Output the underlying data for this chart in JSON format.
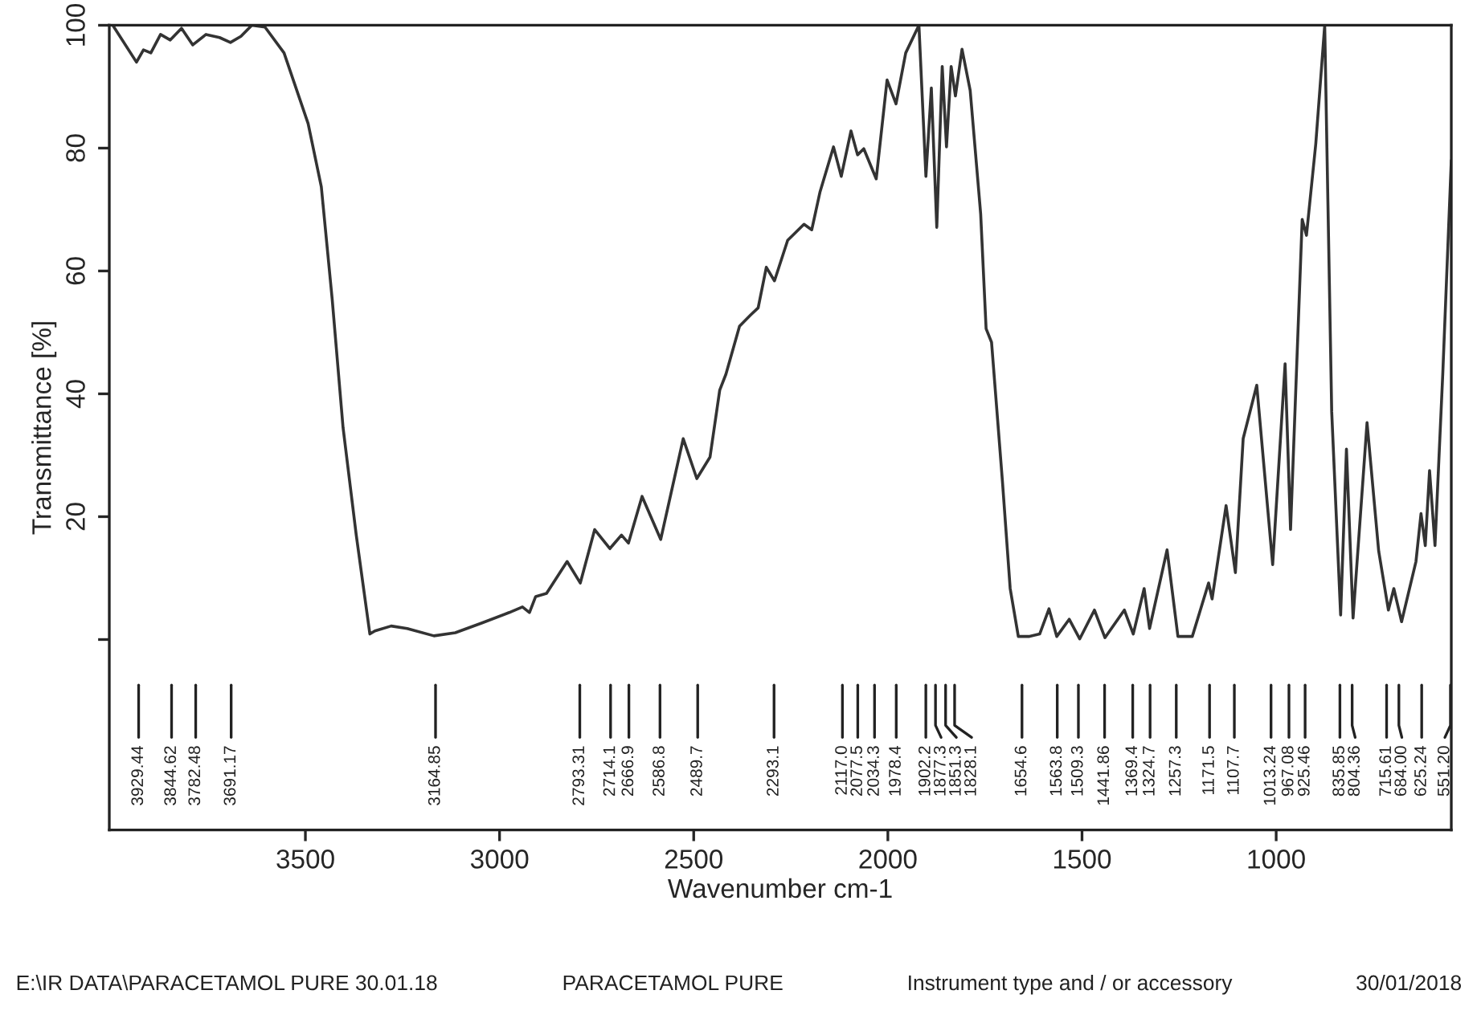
{
  "chart_data": {
    "type": "line",
    "xlabel": "Wavenumber cm-1",
    "ylabel": "Transmittance [%]",
    "xlim": [
      4005,
      549
    ],
    "xticks": [
      3500,
      3000,
      2500,
      2000,
      1500,
      1000
    ],
    "ylim": [
      -31,
      100
    ],
    "yticks": [
      {
        "value": 0,
        "label": null
      },
      20,
      40,
      60,
      80,
      100
    ],
    "grid": false,
    "legend": false,
    "marker": "none",
    "line_style": "solid",
    "series": [
      {
        "color": "#333333",
        "x": [
          3996,
          3935,
          3917,
          3898,
          3873,
          3848,
          3819,
          3790,
          3756,
          3721,
          3693,
          3666,
          3638,
          3604,
          3555,
          3493,
          3459,
          3431,
          3403,
          3369,
          3334,
          3321,
          3279,
          3238,
          3169,
          3114,
          3045,
          2975,
          2941,
          2923,
          2907,
          2879,
          2826,
          2792,
          2755,
          2716,
          2686,
          2668,
          2633,
          2585,
          2527,
          2492,
          2458,
          2433,
          2417,
          2382,
          2354,
          2334,
          2313,
          2292,
          2258,
          2216,
          2196,
          2175,
          2140,
          2120,
          2095,
          2078,
          2062,
          2030,
          2002,
          1979,
          1954,
          1920,
          1902,
          1888,
          1874,
          1860,
          1849,
          1837,
          1826,
          1809,
          1788,
          1761,
          1747,
          1733,
          1705,
          1685,
          1664,
          1637,
          1609,
          1585,
          1565,
          1533,
          1506,
          1468,
          1441,
          1391,
          1368,
          1340,
          1326,
          1281,
          1253,
          1216,
          1174,
          1165,
          1129,
          1105,
          1085,
          1050,
          1009,
          977,
          963,
          933,
          922,
          898,
          875,
          857,
          834,
          819,
          802,
          766,
          736,
          711,
          697,
          677,
          640,
          627,
          616,
          605,
          591,
          571,
          549
        ],
        "values": [
          100,
          94,
          96,
          95.5,
          98.5,
          97.6,
          99.5,
          96.8,
          98.5,
          98,
          97.2,
          98.2,
          100,
          99.7,
          95.5,
          84,
          73.7,
          55.4,
          34.5,
          17,
          0.9,
          1.4,
          2.2,
          1.8,
          0.6,
          1.1,
          2.7,
          4.4,
          5.3,
          4.4,
          7,
          7.5,
          12.7,
          9.2,
          17.9,
          14.8,
          17,
          15.7,
          23.3,
          16.3,
          32.7,
          26.2,
          29.7,
          40.6,
          43.2,
          51,
          52.8,
          54,
          60.6,
          58.4,
          65,
          67.6,
          66.7,
          72.8,
          80.2,
          75.4,
          82.8,
          78.9,
          79.9,
          75,
          91.1,
          87.2,
          95.5,
          100,
          75.4,
          89.8,
          67.1,
          93.3,
          80.2,
          93.3,
          88.5,
          96.1,
          89.4,
          69.3,
          50.6,
          48.4,
          25.8,
          8.3,
          0.5,
          0.5,
          0.9,
          5,
          0.5,
          3.3,
          0.1,
          4.8,
          0.3,
          4.8,
          0.9,
          8.3,
          1.8,
          14.6,
          0.5,
          0.5,
          9.2,
          6.6,
          21.8,
          10.9,
          32.7,
          41.4,
          12.2,
          44.9,
          17.9,
          68.4,
          65.8,
          80.7,
          100,
          37.1,
          4,
          31,
          3.5,
          35.3,
          14.4,
          4.8,
          8.3,
          2.9,
          12.7,
          20.5,
          15.3,
          27.5,
          15.3,
          43.2,
          78
        ]
      }
    ],
    "ref_lines": [
      {
        "axis": "x",
        "value": 3929.44,
        "label": "3929.44"
      },
      {
        "axis": "x",
        "value": 3844.62,
        "label": "3844.62"
      },
      {
        "axis": "x",
        "value": 3782.48,
        "label": "3782.48"
      },
      {
        "axis": "x",
        "value": 3691.17,
        "label": "3691.17"
      },
      {
        "axis": "x",
        "value": 3164.85,
        "label": "3164.85"
      },
      {
        "axis": "x",
        "value": 2793.31,
        "label": "2793.31"
      },
      {
        "axis": "x",
        "value": 2714.1,
        "label": "2714.1"
      },
      {
        "axis": "x",
        "value": 2666.9,
        "label": "2666.9"
      },
      {
        "axis": "x",
        "value": 2586.8,
        "label": "2586.8"
      },
      {
        "axis": "x",
        "value": 2489.7,
        "label": "2489.7"
      },
      {
        "axis": "x",
        "value": 2293.1,
        "label": "2293.1"
      },
      {
        "axis": "x",
        "value": 2117.0,
        "label": "2117.0"
      },
      {
        "axis": "x",
        "value": 2077.5,
        "label": "2077.5"
      },
      {
        "axis": "x",
        "value": 2034.3,
        "label": "2034.3"
      },
      {
        "axis": "x",
        "value": 1978.4,
        "label": "1978.4"
      },
      {
        "axis": "x",
        "value": 1902.2,
        "label": "1902.2"
      },
      {
        "axis": "x",
        "value": 1877.3,
        "label": "1877.3"
      },
      {
        "axis": "x",
        "value": 1851.3,
        "label": "1851.3"
      },
      {
        "axis": "x",
        "value": 1828.1,
        "label": "1828.1"
      },
      {
        "axis": "x",
        "value": 1654.6,
        "label": "1654.6"
      },
      {
        "axis": "x",
        "value": 1563.8,
        "label": "1563.8"
      },
      {
        "axis": "x",
        "value": 1509.3,
        "label": "1509.3"
      },
      {
        "axis": "x",
        "value": 1441.86,
        "label": "1441.86"
      },
      {
        "axis": "x",
        "value": 1369.4,
        "label": "1369.4"
      },
      {
        "axis": "x",
        "value": 1324.7,
        "label": "1324.7"
      },
      {
        "axis": "x",
        "value": 1257.3,
        "label": "1257.3"
      },
      {
        "axis": "x",
        "value": 1171.5,
        "label": "1171.5"
      },
      {
        "axis": "x",
        "value": 1107.7,
        "label": "1107.7"
      },
      {
        "axis": "x",
        "value": 1013.24,
        "label": "1013.24"
      },
      {
        "axis": "x",
        "value": 967.08,
        "label": "967.08"
      },
      {
        "axis": "x",
        "value": 925.46,
        "label": "925.46"
      },
      {
        "axis": "x",
        "value": 835.85,
        "label": "835.85"
      },
      {
        "axis": "x",
        "value": 804.36,
        "label": "804.36"
      },
      {
        "axis": "x",
        "value": 715.61,
        "label": "715.61"
      },
      {
        "axis": "x",
        "value": 684.0,
        "label": "684.00"
      },
      {
        "axis": "x",
        "value": 625.24,
        "label": "625.24"
      },
      {
        "axis": "x",
        "value": 551.2,
        "label": "551.20"
      }
    ],
    "annotations": [
      "E:\\IR DATA\\PARACETAMOL PURE 30.01.18",
      "PARACETAMOL PURE",
      "Instrument type and / or accessory",
      "30/01/2018"
    ]
  }
}
